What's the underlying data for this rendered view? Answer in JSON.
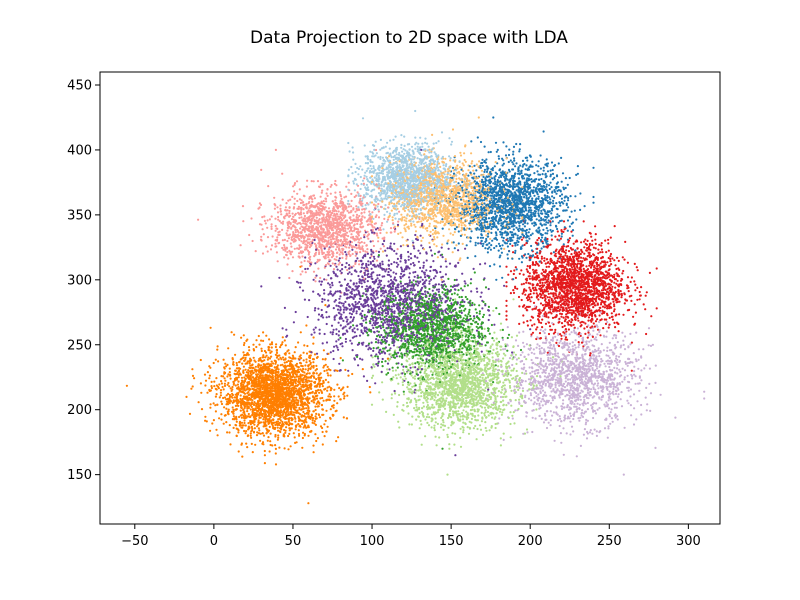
{
  "chart_data": {
    "type": "scatter",
    "title": "Data Projection to 2D space with LDA",
    "xlabel": "",
    "ylabel": "",
    "xlim": [
      -72,
      320
    ],
    "ylim": [
      112,
      460
    ],
    "xticks": [
      -50,
      0,
      50,
      100,
      150,
      200,
      250,
      300
    ],
    "yticks": [
      150,
      200,
      250,
      300,
      350,
      400,
      450
    ],
    "grid": false,
    "legend": "none",
    "series": [
      {
        "color": "#ff7f00",
        "center": [
          38,
          212
        ],
        "spread": [
          17,
          16
        ],
        "count": 2600,
        "extent": {
          "x": [
            -55,
            110
          ],
          "y": [
            128,
            310
          ]
        }
      },
      {
        "color": "#a6cee3",
        "center": [
          122,
          378
        ],
        "spread": [
          14,
          13
        ],
        "count": 1300,
        "extent": {
          "x": [
            85,
            165
          ],
          "y": [
            330,
            430
          ]
        }
      },
      {
        "color": "#fdbf6f",
        "center": [
          145,
          362
        ],
        "spread": [
          17,
          15
        ],
        "count": 1200,
        "extent": {
          "x": [
            100,
            195
          ],
          "y": [
            300,
            425
          ]
        }
      },
      {
        "color": "#1f78b4",
        "center": [
          188,
          358
        ],
        "spread": [
          17,
          17
        ],
        "count": 1700,
        "extent": {
          "x": [
            140,
            240
          ],
          "y": [
            300,
            425
          ]
        }
      },
      {
        "color": "#fb9a99",
        "center": [
          70,
          340
        ],
        "spread": [
          17,
          14
        ],
        "count": 1300,
        "extent": {
          "x": [
            -10,
            130
          ],
          "y": [
            290,
            400
          ]
        }
      },
      {
        "color": "#e31a1c",
        "center": [
          228,
          295
        ],
        "spread": [
          16,
          17
        ],
        "count": 1900,
        "extent": {
          "x": [
            185,
            280
          ],
          "y": [
            230,
            345
          ]
        }
      },
      {
        "color": "#cab2d6",
        "center": [
          228,
          225
        ],
        "spread": [
          20,
          18
        ],
        "count": 1400,
        "extent": {
          "x": [
            170,
            310
          ],
          "y": [
            150,
            280
          ]
        }
      },
      {
        "color": "#b2df8a",
        "center": [
          155,
          220
        ],
        "spread": [
          18,
          17
        ],
        "count": 1800,
        "extent": {
          "x": [
            100,
            220
          ],
          "y": [
            150,
            285
          ]
        }
      },
      {
        "color": "#33a02c",
        "center": [
          138,
          262
        ],
        "spread": [
          17,
          16
        ],
        "count": 1300,
        "extent": {
          "x": [
            80,
            210
          ],
          "y": [
            170,
            320
          ]
        }
      },
      {
        "color": "#6a3d9a",
        "center": [
          112,
          282
        ],
        "spread": [
          24,
          22
        ],
        "count": 1500,
        "extent": {
          "x": [
            30,
            200
          ],
          "y": [
            165,
            400
          ]
        }
      }
    ]
  }
}
